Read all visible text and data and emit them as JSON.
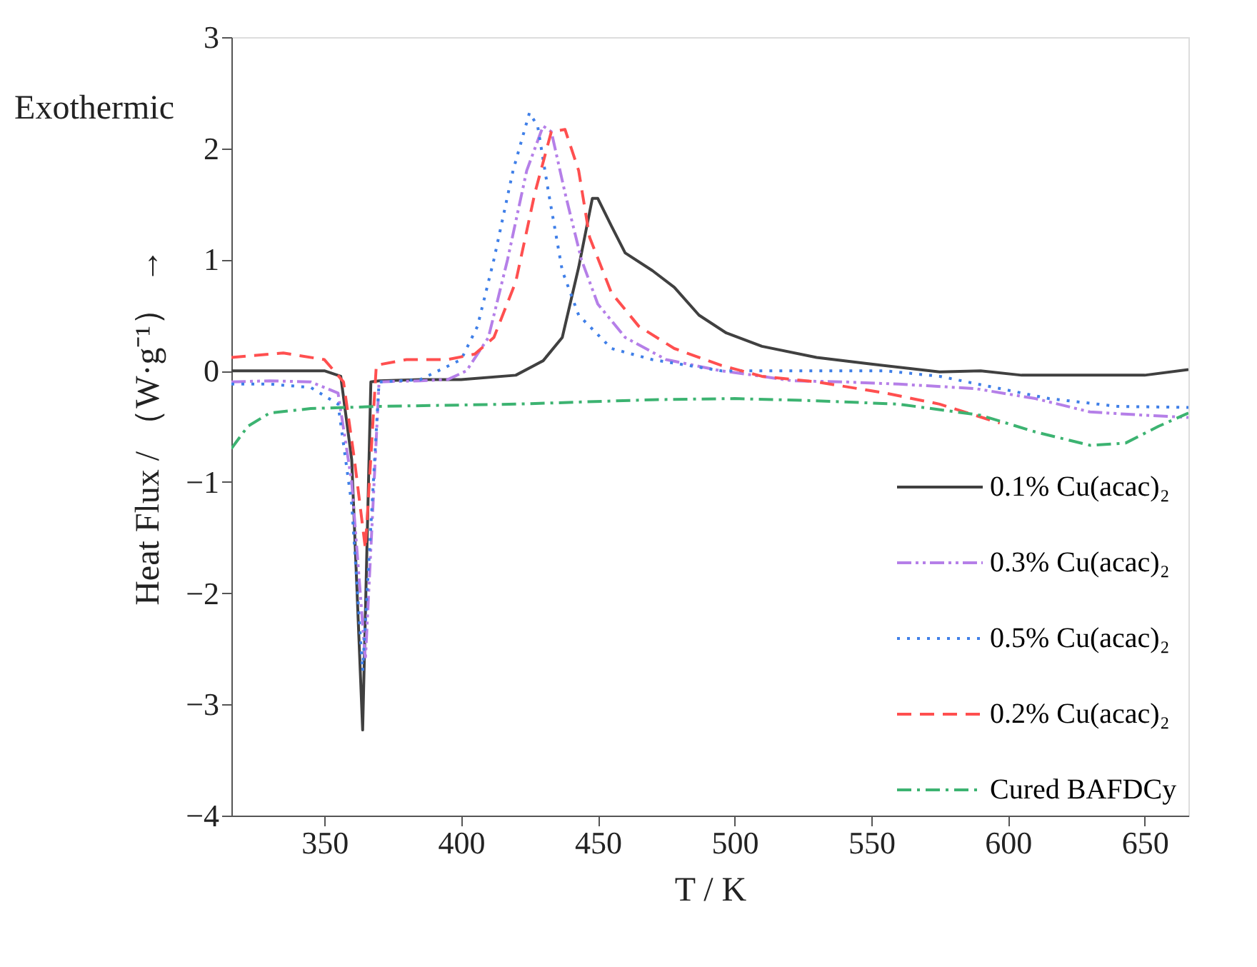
{
  "chart_data": {
    "type": "line",
    "xlabel": "T / K",
    "ylabel": "Heat Flux / （W·g⁻¹） →",
    "annotations": [
      "Exothermic"
    ],
    "xlim": [
      316,
      666
    ],
    "ylim": [
      -4,
      3
    ],
    "xticks": [
      350,
      400,
      450,
      500,
      550,
      600,
      650
    ],
    "yticks": [
      -4,
      -3,
      -2,
      -1,
      0,
      1,
      2,
      3
    ],
    "grid": false,
    "legend": "bottom right",
    "marker": "none",
    "series": [
      {
        "name": "0.1% Cu(acac)₂",
        "color": "#404040",
        "line_style": "solid",
        "x": [
          316,
          335,
          350,
          356,
          360,
          364,
          367,
          370,
          385,
          400,
          420,
          430,
          437,
          443,
          448,
          450,
          455,
          460,
          470,
          478,
          487,
          497,
          510,
          530,
          550,
          575,
          590,
          605,
          630,
          650,
          666
        ],
        "values": [
          0,
          0,
          0,
          -0.05,
          -0.8,
          -3.23,
          -0.1,
          -0.09,
          -0.08,
          -0.08,
          -0.04,
          0.09,
          0.3,
          0.93,
          1.55,
          1.55,
          1.3,
          1.06,
          0.9,
          0.75,
          0.5,
          0.34,
          0.22,
          0.12,
          0.06,
          -0.01,
          0,
          -0.04,
          -0.04,
          -0.04,
          0.01
        ]
      },
      {
        "name": "0.3% Cu(acac)₂",
        "color": "#b57fe8",
        "line_style": "dashdotdot",
        "x": [
          316,
          330,
          345,
          355,
          360,
          365,
          370,
          385,
          395,
          402,
          410,
          417,
          424,
          430,
          433,
          438,
          444,
          450,
          460,
          475,
          495,
          510,
          521,
          540,
          560,
          588,
          610,
          630,
          650,
          666
        ],
        "values": [
          -0.1,
          -0.09,
          -0.1,
          -0.2,
          -1,
          -2.6,
          -0.1,
          -0.09,
          -0.08,
          0,
          0.3,
          1,
          1.8,
          2.2,
          2.15,
          1.6,
          1,
          0.6,
          0.3,
          0.1,
          0,
          -0.05,
          -0.09,
          -0.1,
          -0.12,
          -0.16,
          -0.25,
          -0.37,
          -0.4,
          -0.42
        ]
      },
      {
        "name": "0.5% Cu(acac)₂",
        "color": "#3f7fe8",
        "line_style": "dotted",
        "x": [
          316,
          330,
          345,
          355,
          360,
          364,
          370,
          385,
          400,
          406,
          412,
          419,
          425,
          428,
          432,
          437,
          443,
          455,
          470,
          495,
          520,
          555,
          575,
          595,
          615,
          640,
          666
        ],
        "values": [
          -0.12,
          -0.12,
          -0.15,
          -0.3,
          -1.2,
          -2.7,
          -0.1,
          -0.08,
          0.1,
          0.4,
          1,
          1.8,
          2.32,
          2.2,
          1.6,
          0.9,
          0.5,
          0.2,
          0.1,
          0,
          0,
          0,
          -0.05,
          -0.15,
          -0.25,
          -0.32,
          -0.33
        ]
      },
      {
        "name": "0.2% Cu(acac)₂",
        "color": "#ff4f4f",
        "line_style": "dashed",
        "x": [
          316,
          335,
          350,
          357,
          361,
          365,
          369,
          380,
          395,
          405,
          412,
          420,
          427,
          433,
          438,
          443,
          447,
          455,
          465,
          478,
          495,
          510,
          530,
          555,
          575,
          597
        ],
        "values": [
          0.12,
          0.16,
          0.1,
          -0.1,
          -0.8,
          -1.6,
          0.05,
          0.1,
          0.1,
          0.15,
          0.3,
          0.8,
          1.6,
          2.15,
          2.17,
          1.8,
          1.2,
          0.7,
          0.4,
          0.2,
          0.05,
          -0.05,
          -0.1,
          -0.2,
          -0.3,
          -0.47
        ]
      },
      {
        "name": "Cured BAFDCy",
        "color": "#3cb371",
        "line_style": "dashdot",
        "x": [
          316,
          322,
          330,
          345,
          370,
          420,
          470,
          500,
          530,
          560,
          590,
          610,
          630,
          643,
          655,
          666
        ],
        "values": [
          -0.7,
          -0.5,
          -0.38,
          -0.34,
          -0.32,
          -0.3,
          -0.26,
          -0.25,
          -0.27,
          -0.3,
          -0.4,
          -0.55,
          -0.67,
          -0.65,
          -0.5,
          -0.38
        ]
      }
    ]
  }
}
